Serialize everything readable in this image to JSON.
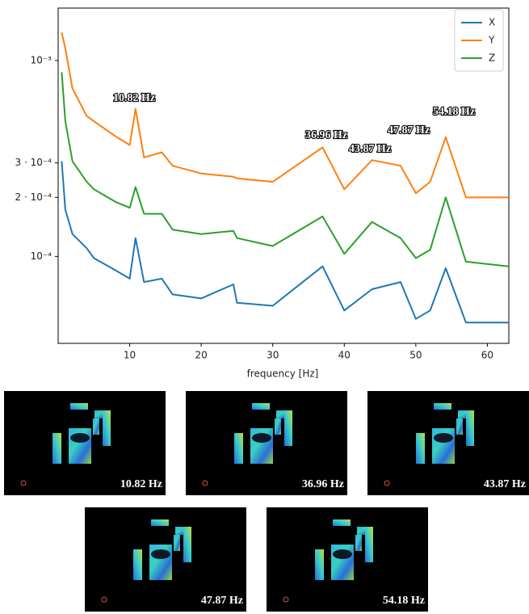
{
  "chart_data": {
    "type": "line",
    "xlabel": "frequency [Hz]",
    "ylog": true,
    "x": [
      0.5,
      1,
      2,
      4,
      5,
      8,
      10,
      10.82,
      12,
      14.5,
      16,
      20,
      24.5,
      25,
      30,
      36.96,
      40,
      43.87,
      47.87,
      50,
      52,
      54.18,
      57,
      63
    ],
    "series": [
      {
        "name": "X",
        "color": "#1f77b4",
        "values": [
          0.000306,
          0.000173,
          0.00013,
          0.00011,
          9.8e-05,
          8.5e-05,
          7.7e-05,
          0.000124,
          7.4e-05,
          7.7e-05,
          6.4e-05,
          6.1e-05,
          7.2e-05,
          5.8e-05,
          5.6e-05,
          8.9e-05,
          5.3e-05,
          6.8e-05,
          7.4e-05,
          4.8e-05,
          5.3e-05,
          8.7e-05,
          4.6e-05,
          4.6e-05
        ]
      },
      {
        "name": "Y",
        "color": "#ff7f0e",
        "values": [
          0.00139,
          0.00115,
          0.00072,
          0.00052,
          0.00049,
          0.00041,
          0.00037,
          0.000566,
          0.00032,
          0.00034,
          0.00029,
          0.000265,
          0.000255,
          0.00025,
          0.00024,
          0.00036,
          0.00022,
          0.00031,
          0.00029,
          0.00021,
          0.00024,
          0.000406,
          0.0002,
          0.0002
        ]
      },
      {
        "name": "Z",
        "color": "#2ca02c",
        "values": [
          0.00087,
          0.00049,
          0.000306,
          0.00024,
          0.00022,
          0.00019,
          0.000177,
          0.000226,
          0.000165,
          0.000165,
          0.000137,
          0.00013,
          0.000135,
          0.000124,
          0.000113,
          0.00016,
          0.000103,
          0.00015,
          0.000124,
          9.8e-05,
          0.000108,
          0.0002,
          9.4e-05,
          8.9e-05
        ]
      }
    ],
    "xlim": [
      0,
      63
    ],
    "xticks": [
      10,
      20,
      30,
      40,
      50,
      60
    ],
    "ylim": [
      3.6e-05,
      0.00185
    ],
    "yticks": [
      {
        "value": 0.001,
        "label": "10⁻³"
      },
      {
        "value": 0.0003,
        "label": "3 · 10⁻⁴"
      },
      {
        "value": 0.0002,
        "label": "2 · 10⁻⁴"
      },
      {
        "value": 0.0001,
        "label": "10⁻⁴"
      }
    ],
    "legend": "upper right",
    "annotations": [
      "10.82 Hz",
      "36.96 Hz",
      "43.87 Hz",
      "47.87 Hz",
      "54.18 Hz"
    ]
  },
  "panels": [
    {
      "label": "10.82 Hz"
    },
    {
      "label": "36.96 Hz"
    },
    {
      "label": "43.87 Hz"
    },
    {
      "label": "47.87 Hz"
    },
    {
      "label": "54.18 Hz"
    }
  ]
}
